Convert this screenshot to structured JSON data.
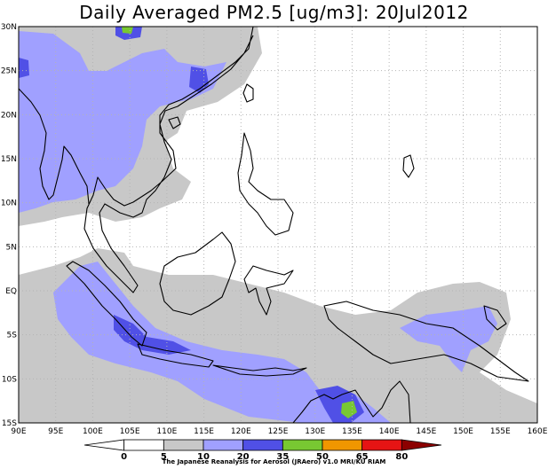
{
  "title": "Daily Averaged PM2.5 [ug/m3]: 20Jul2012",
  "lat_labels": [
    "30N",
    "25N",
    "20N",
    "15N",
    "10N",
    "5N",
    "EQ",
    "5S",
    "10S",
    "15S"
  ],
  "lon_labels": [
    "90E",
    "95E",
    "100E",
    "105E",
    "110E",
    "115E",
    "120E",
    "125E",
    "130E",
    "135E",
    "140E",
    "145E",
    "150E",
    "155E",
    "160E"
  ],
  "legend": {
    "ticks": [
      "0",
      "5",
      "10",
      "20",
      "35",
      "50",
      "65",
      "80"
    ],
    "colors": [
      "#ffffff",
      "#ffffff",
      "#c8c8c8",
      "#a0a0ff",
      "#5050e6",
      "#78c832",
      "#f09600",
      "#e61414",
      "#8c0000"
    ]
  },
  "credit": "The Japanese Reanalysis for Aerosol (JRAero) v1.0 MRI/KU RIAM"
}
